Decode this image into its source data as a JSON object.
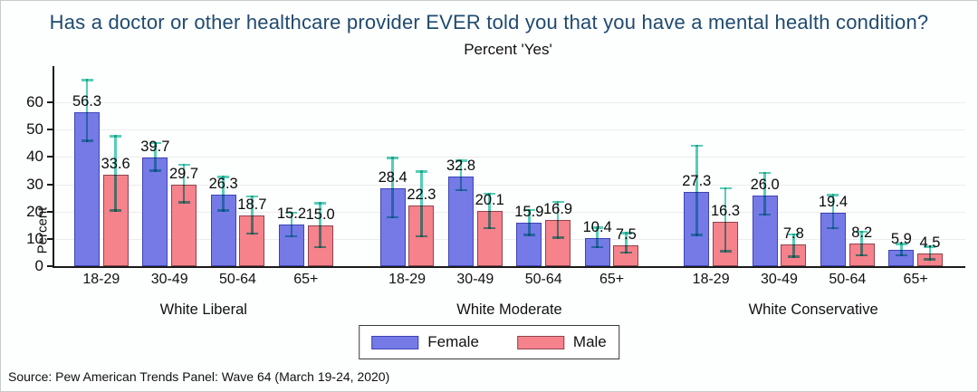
{
  "chart_data": {
    "type": "bar",
    "title": "Has a doctor or other healthcare provider EVER told you that you have a mental health condition?",
    "subtitle": "Percent 'Yes'",
    "ylabel": "Percent",
    "yticks": [
      0,
      10,
      20,
      30,
      40,
      50,
      60
    ],
    "ylim": [
      0,
      73
    ],
    "grid": true,
    "legend_position": "bottom-center",
    "title_color": "#1f4a70",
    "error_bar_color": "#58ceba",
    "source": "Source: Pew American Trends Panel: Wave 64 (March 19-24, 2020)",
    "series": [
      {
        "name": "Female",
        "color": "#757ae6",
        "border": "#3e44b5"
      },
      {
        "name": "Male",
        "color": "#f6828c",
        "border": "#8f434d"
      }
    ],
    "categories": [
      "18-29",
      "30-49",
      "50-64",
      "65+"
    ],
    "groups": [
      {
        "label": "White Liberal",
        "female": [
          "56.3",
          "39.7",
          "26.3",
          "15.2"
        ],
        "male": [
          "33.6",
          "29.7",
          "18.7",
          "15.0"
        ],
        "female_ci": [
          [
            45.5,
            68.5
          ],
          [
            34.5,
            45.5
          ],
          [
            20.0,
            33.0
          ],
          [
            10.5,
            20.0
          ]
        ],
        "male_ci": [
          [
            20.0,
            48.0
          ],
          [
            23.0,
            37.5
          ],
          [
            11.5,
            26.0
          ],
          [
            6.5,
            23.5
          ]
        ]
      },
      {
        "label": "White Moderate",
        "female": [
          "28.4",
          "32.8",
          "15.9",
          "10.4"
        ],
        "male": [
          "22.3",
          "20.1",
          "16.9",
          "7.5"
        ],
        "female_ci": [
          [
            17.5,
            40.0
          ],
          [
            27.5,
            39.0
          ],
          [
            11.0,
            21.0
          ],
          [
            6.5,
            14.5
          ]
        ],
        "male_ci": [
          [
            10.5,
            35.0
          ],
          [
            13.5,
            27.0
          ],
          [
            10.0,
            24.0
          ],
          [
            4.5,
            12.5
          ]
        ]
      },
      {
        "label": "White Conservative",
        "female": [
          "27.3",
          "26.0",
          "19.4",
          "5.9"
        ],
        "male": [
          "16.3",
          "7.8",
          "8.2",
          "4.5"
        ],
        "female_ci": [
          [
            11.0,
            44.5
          ],
          [
            18.5,
            34.5
          ],
          [
            13.5,
            26.5
          ],
          [
            3.5,
            8.5
          ]
        ],
        "male_ci": [
          [
            5.0,
            29.0
          ],
          [
            3.0,
            12.0
          ],
          [
            3.5,
            13.0
          ],
          [
            2.0,
            7.5
          ]
        ]
      }
    ]
  }
}
